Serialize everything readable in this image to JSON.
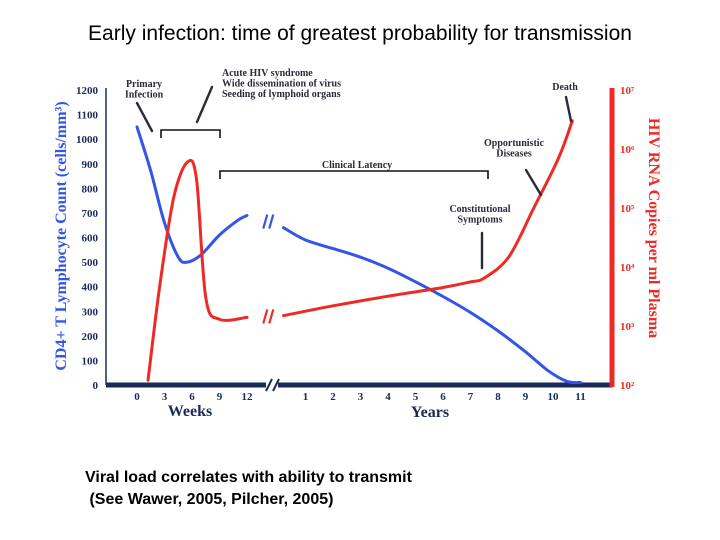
{
  "slide": {
    "title": "Early infection: time of greatest probability for transmission",
    "caption_line1": "Viral load correlates with ability to transmit",
    "caption_line2": " (See Wawer, 2005, Pilcher, 2005)"
  },
  "colors": {
    "cd4": "#3355e8",
    "rna": "#ee2a24",
    "axis": "#1a2a5a"
  },
  "chart_data": {
    "type": "line",
    "title": "",
    "y_left_label": "CD4+ T Lymphocyte Count (cells/mm³)",
    "y_left_ticks": [
      "0",
      "100",
      "200",
      "300",
      "400",
      "500",
      "600",
      "700",
      "800",
      "900",
      "1000",
      "1100",
      "1200"
    ],
    "y_left_range": [
      0,
      1200
    ],
    "y_right_label": "HIV RNA Copies per ml Plasma",
    "y_right_ticks": [
      "10²",
      "10³",
      "10⁴",
      "10⁵",
      "10⁶",
      "10⁷"
    ],
    "y_right_range": [
      100,
      10000000
    ],
    "y_right_scale": "log",
    "x_weeks_label": "Weeks",
    "x_weeks_ticks": [
      "0",
      "3",
      "6",
      "9",
      "12"
    ],
    "x_years_label": "Years",
    "x_years_ticks": [
      "1",
      "2",
      "3",
      "4",
      "5",
      "6",
      "7",
      "8",
      "9",
      "10",
      "11"
    ],
    "series": [
      {
        "name": "CD4+ T Lymphocyte Count",
        "axis": "left",
        "x_weeks": [
          0,
          1.5,
          3,
          4.5,
          5.5,
          7,
          9,
          11,
          12
        ],
        "y_weeks": [
          1050,
          870,
          660,
          520,
          500,
          530,
          610,
          670,
          690
        ],
        "x_years": [
          0.2,
          1,
          2,
          3,
          4,
          5,
          6,
          7,
          8,
          9,
          9.8,
          10.5,
          11
        ],
        "y_years": [
          640,
          590,
          555,
          520,
          475,
          420,
          360,
          295,
          220,
          135,
          60,
          15,
          10
        ]
      },
      {
        "name": "HIV RNA Copies per ml Plasma",
        "axis": "right",
        "x_weeks": [
          1.2,
          2.5,
          4,
          5.5,
          6.5,
          7.5,
          9,
          12
        ],
        "y_weeks": [
          120,
          5000,
          150000,
          600000,
          300000,
          3000,
          1300,
          1400
        ],
        "x_years": [
          0.2,
          2,
          4,
          6,
          7,
          7.5,
          8.4,
          9.3,
          10.2,
          10.7
        ],
        "y_years": [
          1500,
          2200,
          3200,
          4500,
          5600,
          6500,
          15000,
          100000,
          700000,
          3000000
        ]
      }
    ],
    "annotations": [
      {
        "label_lines": [
          "Primary",
          "Infection"
        ]
      },
      {
        "label_lines": [
          "Acute HIV syndrome",
          "Wide dissemination of virus",
          "Seeding of lymphoid organs"
        ]
      },
      {
        "label_lines": [
          "Clinical Latency"
        ]
      },
      {
        "label_lines": [
          "Constitutional",
          "Symptoms"
        ]
      },
      {
        "label_lines": [
          "Opportunistic",
          "Diseases"
        ]
      },
      {
        "label_lines": [
          "Death"
        ]
      }
    ],
    "grid": false,
    "legend": "none"
  }
}
